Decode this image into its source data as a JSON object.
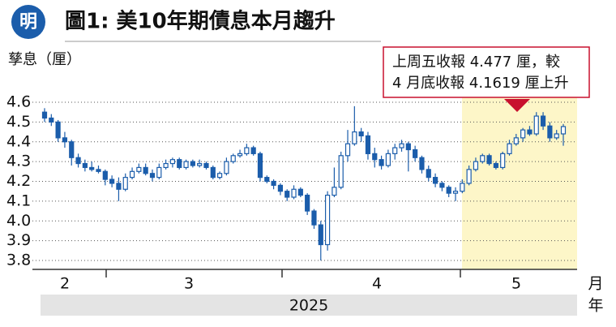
{
  "logo": "明",
  "chart_data": {
    "type": "candlestick",
    "title": "圖1: 美10年期債息本月趨升",
    "y_label": "孳息（厘）",
    "annotation": [
      "上周五收報 4.477 厘，較",
      "4 月底收報 4.1619 厘上升"
    ],
    "months": [
      "2",
      "3",
      "4",
      "5"
    ],
    "month_unit": "月",
    "year": "2025",
    "year_unit": "年",
    "color": "#1b5dab",
    "up_fill": "#ffffff",
    "highlight_color": "#fdf6c8",
    "annotation_color": "#c8102e",
    "ylim": [
      3.8,
      4.6
    ],
    "yticks": [
      3.8,
      3.9,
      {
        "value": 4,
        "label": "4.0"
      },
      4.1,
      4.2,
      4.3,
      4.4,
      4.5,
      4.6
    ],
    "grid": true,
    "series": {
      "open": [
        4.55,
        4.52,
        4.5,
        4.42,
        4.4,
        4.32,
        4.29,
        4.27,
        4.26,
        4.25,
        4.21,
        4.19,
        4.16,
        4.22,
        4.25,
        4.27,
        4.24,
        4.22,
        4.27,
        4.29,
        4.31,
        4.27,
        4.3,
        4.28,
        4.29,
        4.27,
        4.22,
        4.24,
        4.3,
        4.33,
        4.34,
        4.37,
        4.34,
        4.22,
        4.2,
        4.18,
        4.15,
        4.12,
        4.16,
        4.13,
        4.05,
        3.98,
        3.88,
        4.13,
        4.17,
        4.33,
        4.39,
        4.45,
        4.43,
        4.34,
        4.31,
        4.28,
        4.34,
        4.37,
        4.39,
        4.36,
        4.32,
        4.26,
        4.22,
        4.19,
        4.17,
        4.14,
        4.15,
        4.19,
        4.26,
        4.3,
        4.33,
        4.29,
        4.27,
        4.34,
        4.39,
        4.42,
        4.46,
        4.44,
        4.53,
        4.48,
        4.42,
        4.44
      ],
      "high": [
        4.57,
        4.54,
        4.51,
        4.45,
        4.41,
        4.34,
        4.31,
        4.3,
        4.28,
        4.26,
        4.23,
        4.22,
        4.24,
        4.27,
        4.29,
        4.29,
        4.26,
        4.29,
        4.31,
        4.32,
        4.32,
        4.31,
        4.31,
        4.31,
        4.3,
        4.28,
        4.25,
        4.32,
        4.34,
        4.36,
        4.39,
        4.38,
        4.35,
        4.23,
        4.21,
        4.19,
        4.16,
        4.18,
        4.17,
        4.14,
        4.06,
        4.0,
        4.15,
        4.27,
        4.35,
        4.46,
        4.58,
        4.47,
        4.45,
        4.37,
        4.33,
        4.36,
        4.39,
        4.41,
        4.4,
        4.38,
        4.33,
        4.28,
        4.24,
        4.2,
        4.18,
        4.17,
        4.21,
        4.28,
        4.32,
        4.34,
        4.34,
        4.3,
        4.35,
        4.41,
        4.44,
        4.47,
        4.48,
        4.55,
        4.55,
        4.5,
        4.46,
        4.49
      ],
      "low": [
        4.5,
        4.48,
        4.4,
        4.37,
        4.28,
        4.27,
        4.25,
        4.25,
        4.24,
        4.18,
        4.17,
        4.1,
        4.15,
        4.21,
        4.24,
        4.23,
        4.2,
        4.21,
        4.26,
        4.27,
        4.26,
        4.26,
        4.27,
        4.27,
        4.26,
        4.21,
        4.21,
        4.23,
        4.29,
        4.32,
        4.33,
        4.33,
        4.2,
        4.19,
        4.16,
        4.13,
        4.1,
        4.11,
        4.12,
        4.03,
        3.96,
        3.8,
        3.85,
        4.12,
        4.16,
        4.3,
        4.38,
        4.4,
        4.31,
        4.27,
        4.26,
        4.27,
        4.31,
        4.35,
        4.25,
        4.3,
        4.24,
        4.2,
        4.17,
        4.15,
        4.12,
        4.1,
        4.14,
        4.18,
        4.25,
        4.29,
        4.28,
        4.26,
        4.26,
        4.33,
        4.38,
        4.4,
        4.43,
        4.43,
        4.46,
        4.4,
        4.41,
        4.38
      ],
      "close": [
        4.52,
        4.5,
        4.42,
        4.4,
        4.32,
        4.29,
        4.27,
        4.26,
        4.25,
        4.21,
        4.19,
        4.16,
        4.22,
        4.25,
        4.27,
        4.24,
        4.22,
        4.27,
        4.29,
        4.31,
        4.27,
        4.3,
        4.28,
        4.29,
        4.27,
        4.22,
        4.24,
        4.3,
        4.33,
        4.34,
        4.37,
        4.34,
        4.22,
        4.2,
        4.18,
        4.15,
        4.12,
        4.16,
        4.13,
        4.05,
        3.98,
        3.88,
        4.13,
        4.17,
        4.33,
        4.39,
        4.45,
        4.43,
        4.34,
        4.31,
        4.28,
        4.34,
        4.37,
        4.39,
        4.36,
        4.32,
        4.26,
        4.22,
        4.19,
        4.17,
        4.14,
        4.15,
        4.19,
        4.26,
        4.3,
        4.33,
        4.29,
        4.27,
        4.34,
        4.39,
        4.42,
        4.46,
        4.44,
        4.53,
        4.48,
        4.42,
        4.44,
        4.477
      ]
    }
  }
}
